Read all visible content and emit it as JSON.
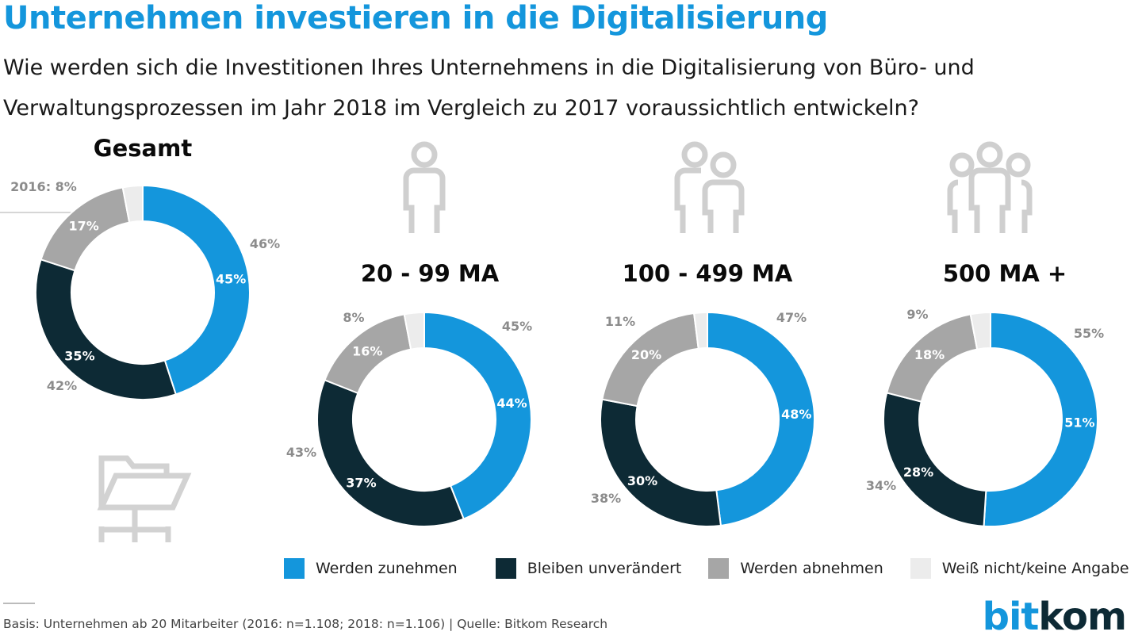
{
  "title": "Unternehmen investieren in die Digitalisierung",
  "subtitle": "Wie werden sich die Investitionen Ihres Unternehmens in die Digitalisierung von Büro- und Verwaltungsprozessen im Jahr 2018 im Vergleich zu 2017 voraussichtlich entwickeln?",
  "colors": {
    "zunehmen": "#1496dc",
    "unveraendert": "#0d2a35",
    "abnehmen": "#a6a6a6",
    "weiss_nicht": "#ececec",
    "outer_label": "#8c8c8c"
  },
  "icons": [
    "person-icon",
    "two-persons-icon",
    "three-persons-icon",
    "folder-icon"
  ],
  "legend": [
    {
      "label": "Werden zunehmen",
      "color": "#1496dc"
    },
    {
      "label": "Bleiben unverändert",
      "color": "#0d2a35"
    },
    {
      "label": "Werden abnehmen",
      "color": "#a6a6a6"
    },
    {
      "label": "Weiß nicht/keine Angabe",
      "color": "#ececec"
    }
  ],
  "chart_data": [
    {
      "type": "pie",
      "subtype": "donut",
      "group": "Gesamt",
      "categories": [
        "Werden zunehmen",
        "Bleiben unverändert",
        "Werden abnehmen",
        "Weiß nicht/keine Angabe"
      ],
      "values_2018": [
        45,
        35,
        17,
        3
      ],
      "labels_2018": [
        "45%",
        "35%",
        "17%",
        ""
      ],
      "labels_2016": [
        "46%",
        "42%",
        "2016:  8%"
      ]
    },
    {
      "type": "pie",
      "subtype": "donut",
      "group": "20 - 99 MA",
      "categories": [
        "Werden zunehmen",
        "Bleiben unverändert",
        "Werden abnehmen",
        "Weiß nicht/keine Angabe"
      ],
      "values_2018": [
        44,
        37,
        16,
        3
      ],
      "labels_2018": [
        "44%",
        "37%",
        "16%",
        ""
      ],
      "labels_2016": [
        "45%",
        "43%",
        "8%"
      ]
    },
    {
      "type": "pie",
      "subtype": "donut",
      "group": "100 - 499 MA",
      "categories": [
        "Werden zunehmen",
        "Bleiben unverändert",
        "Werden abnehmen",
        "Weiß nicht/keine Angabe"
      ],
      "values_2018": [
        48,
        30,
        20,
        2
      ],
      "labels_2018": [
        "48%",
        "30%",
        "20%",
        ""
      ],
      "labels_2016": [
        "47%",
        "38%",
        "11%"
      ]
    },
    {
      "type": "pie",
      "subtype": "donut",
      "group": "500 MA +",
      "categories": [
        "Werden zunehmen",
        "Bleiben unverändert",
        "Werden abnehmen",
        "Weiß nicht/keine Angabe"
      ],
      "values_2018": [
        51,
        28,
        18,
        3
      ],
      "labels_2018": [
        "51%",
        "28%",
        "18%",
        ""
      ],
      "labels_2016": [
        "55%",
        "34%",
        "9%"
      ]
    }
  ],
  "footnote": "Basis: Unternehmen ab 20 Mitarbeiter (2016: n=1.108; 2018: n=1.106) | Quelle: Bitkom Research",
  "logo": {
    "part1": "bit",
    "part2": "kom"
  }
}
